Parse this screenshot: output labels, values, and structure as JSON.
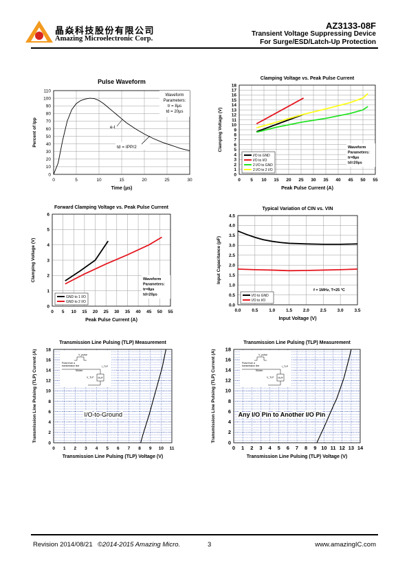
{
  "header": {
    "company_cn": "晶焱科技股份有限公司",
    "company_en": "Amazing Microelectronic Corp.",
    "part_number": "AZ3133-08F",
    "subtitle1": "Transient Voltage Suppressing Device",
    "subtitle2": "For Surge/ESD/Latch-Up Protection",
    "logo_colors": {
      "orange": "#F39A1E",
      "red": "#D7261E"
    }
  },
  "footer": {
    "revision": "Revision 2014/08/21",
    "copyright": "©2014-2015 Amazing Micro.",
    "page": "3",
    "website": "www.amazingIC.com"
  },
  "chart_data": [
    {
      "id": "pulse",
      "type": "line",
      "title": "Pulse Waveform",
      "xlabel": "Time (µs)",
      "ylabel": "Percent of Ipp",
      "xlim": [
        0,
        30
      ],
      "ylim": [
        0,
        110
      ],
      "xticks": [
        "0",
        "5",
        "10",
        "15",
        "20",
        "25",
        "30"
      ],
      "yticks": [
        "0",
        "10",
        "20",
        "30",
        "40",
        "50",
        "60",
        "70",
        "80",
        "90",
        "100",
        "110"
      ],
      "grid": true,
      "legend_lines": [
        "Waveform",
        "Parameters:",
        "tr = 8µs",
        "td = 20µs"
      ],
      "annotations": [
        "e-t",
        "td = IPP/2"
      ],
      "series": [
        {
          "color": "#000000",
          "x": [
            0,
            1,
            2,
            3,
            4,
            5,
            6,
            7,
            8,
            9,
            10,
            11,
            12,
            13,
            14,
            15,
            16,
            18,
            20,
            22,
            24,
            26,
            28,
            30
          ],
          "y": [
            0,
            15,
            45,
            70,
            85,
            93,
            97,
            99,
            100,
            99.5,
            97,
            93,
            88,
            83,
            78,
            73,
            68,
            60,
            53,
            47,
            42,
            38,
            34,
            31
          ]
        }
      ]
    },
    {
      "id": "clamp",
      "type": "line",
      "title": "Clamping Voltage vs. Peak Pulse Current",
      "xlabel": "Peak Pulse Current (A)",
      "ylabel": "Clamping Voltage (V)",
      "xlim": [
        0,
        55
      ],
      "ylim": [
        0,
        18
      ],
      "xticks": [
        "0",
        "5",
        "10",
        "15",
        "20",
        "25",
        "30",
        "35",
        "40",
        "45",
        "50",
        "55"
      ],
      "yticks": [
        "0",
        "1",
        "2",
        "3",
        "4",
        "5",
        "6",
        "7",
        "8",
        "9",
        "10",
        "11",
        "12",
        "13",
        "14",
        "15",
        "16",
        "17",
        "18"
      ],
      "grid": true,
      "legend_position": "bottom-left",
      "note_lines": [
        "Waveform",
        "Parameters:",
        "tr=8µs",
        "td=20µs"
      ],
      "series": [
        {
          "name": "I/O to GND",
          "color": "#000000",
          "x": [
            7,
            26
          ],
          "y": [
            8.6,
            12.1
          ]
        },
        {
          "name": "I/O to I/O",
          "color": "#E5171F",
          "x": [
            7,
            26
          ],
          "y": [
            10.2,
            15.4
          ]
        },
        {
          "name": "2 I/O to GND",
          "color": "#23E323",
          "x": [
            7,
            15,
            25,
            35,
            45,
            50,
            52
          ],
          "y": [
            8.5,
            9.5,
            10.5,
            11.3,
            12.3,
            13,
            13.7
          ]
        },
        {
          "name": "2 I/O to 2 I/O",
          "color": "#FFFF1A",
          "x": [
            7,
            15,
            25,
            35,
            45,
            50,
            52
          ],
          "y": [
            9.4,
            10.5,
            12,
            13.2,
            14.5,
            15.4,
            16.3
          ]
        }
      ]
    },
    {
      "id": "fwd",
      "type": "line",
      "title": "Forward Clamping Voltage vs. Peak Pulse Current",
      "xlabel": "Peak Pulse Current (A)",
      "ylabel": "Clamping Voltage (V)",
      "xlim": [
        0,
        55
      ],
      "ylim": [
        0,
        6
      ],
      "xticks": [
        "0",
        "5",
        "10",
        "15",
        "20",
        "25",
        "30",
        "35",
        "40",
        "45",
        "50",
        "55"
      ],
      "yticks": [
        "0",
        "1",
        "2",
        "3",
        "4",
        "5",
        "6"
      ],
      "grid": true,
      "legend_position": "bottom-left",
      "note_lines": [
        "Waveform",
        "Parameters:",
        "tr=8µs",
        "td=20µs"
      ],
      "series": [
        {
          "name": "GND to 1 I/O",
          "color": "#000000",
          "x": [
            6,
            13,
            20,
            26
          ],
          "y": [
            1.65,
            2.3,
            3,
            4.25
          ]
        },
        {
          "name": "GND to 2 I/O",
          "color": "#E5171F",
          "x": [
            6,
            15,
            25,
            35,
            45,
            51
          ],
          "y": [
            1.45,
            2.1,
            2.75,
            3.35,
            4,
            4.5
          ]
        }
      ]
    },
    {
      "id": "cap",
      "type": "line",
      "title": "Typical Variation of CIN vs. VIN",
      "xlabel": "Input Voltage (V)",
      "ylabel": "Input Capacitance (pF)",
      "xlim": [
        0,
        3.5
      ],
      "ylim": [
        0,
        4.5
      ],
      "xticks": [
        "0.0",
        "0.5",
        "1.0",
        "1.5",
        "2.0",
        "2.5",
        "3.0",
        "3.5"
      ],
      "yticks": [
        "0.0",
        "0.5",
        "1.0",
        "1.5",
        "2.0",
        "2.5",
        "3.0",
        "3.5",
        "4.0",
        "4.5"
      ],
      "grid": true,
      "legend_position": "bottom-left",
      "note": "f = 1MHz, T=25 °C",
      "series": [
        {
          "name": "I/O to GND",
          "color": "#000000",
          "x": [
            0,
            0.25,
            0.5,
            0.75,
            1,
            1.25,
            1.5,
            2,
            2.5,
            3,
            3.5
          ],
          "y": [
            3.72,
            3.55,
            3.4,
            3.28,
            3.2,
            3.14,
            3.1,
            3.07,
            3.05,
            3.05,
            3.07
          ]
        },
        {
          "name": "I/O to I/O",
          "color": "#E5171F",
          "x": [
            0,
            0.5,
            1,
            1.5,
            2,
            2.5,
            3,
            3.5
          ],
          "y": [
            1.8,
            1.77,
            1.75,
            1.72,
            1.73,
            1.75,
            1.77,
            1.8
          ]
        }
      ]
    },
    {
      "id": "tlp1",
      "type": "line",
      "title": "Transmission Line Pulsing (TLP) Measurement",
      "xlabel": "Transmission Line Pulsing (TLP) Voltage (V)",
      "ylabel": "Transmission Line Pulsing (TLP) Current (A)",
      "xlim": [
        0,
        11
      ],
      "ylim": [
        0,
        18
      ],
      "xticks": [
        "0",
        "1",
        "2",
        "3",
        "4",
        "5",
        "6",
        "7",
        "8",
        "9",
        "10",
        "11"
      ],
      "yticks": [
        "0",
        "2",
        "4",
        "6",
        "8",
        "10",
        "12",
        "14",
        "16",
        "18"
      ],
      "grid": true,
      "label": "I/O-to-Ground",
      "inset_labels": [
        "V_pulse",
        "Pulse from a",
        "transmission line",
        "50ohm",
        "I_TLP",
        "V_TLP",
        "DUT"
      ],
      "series": [
        {
          "color": "#000000",
          "x": [
            8.1,
            8.3,
            8.6,
            8.9,
            9.1,
            9.3,
            9.5,
            9.7,
            9.9,
            10.1,
            10.3,
            10.45
          ],
          "y": [
            0,
            1.5,
            3.5,
            5.5,
            7,
            8.5,
            10,
            11.5,
            13,
            14.5,
            16.5,
            18
          ]
        }
      ]
    },
    {
      "id": "tlp2",
      "type": "line",
      "title": "Transmission Line Pulsing (TLP) Measurement",
      "xlabel": "Transmission Line Pulsing (TLP) Voltage (V)",
      "ylabel": "Transmission Line Pulsing (TLP) Current (A)",
      "xlim": [
        0,
        14
      ],
      "ylim": [
        0,
        18
      ],
      "xticks": [
        "0",
        "1",
        "2",
        "3",
        "4",
        "5",
        "6",
        "7",
        "8",
        "9",
        "10",
        "11",
        "12",
        "13",
        "14"
      ],
      "yticks": [
        "0",
        "2",
        "4",
        "6",
        "8",
        "10",
        "12",
        "14",
        "16",
        "18"
      ],
      "grid": true,
      "label": "Any I/O Pin to Another I/O Pin",
      "inset_labels": [
        "V_pulse",
        "Pulse from a",
        "transmission line",
        "50ohm",
        "I_TLP",
        "V_TLP",
        "DUT"
      ],
      "series": [
        {
          "color": "#000000",
          "x": [
            9.2,
            9.6,
            10.0,
            10.5,
            11.0,
            11.4,
            11.8,
            12.2,
            12.5,
            12.8,
            13.0
          ],
          "y": [
            0,
            1.5,
            3,
            5,
            7,
            8.5,
            10.5,
            12.5,
            14.5,
            16.5,
            18
          ]
        }
      ]
    }
  ]
}
